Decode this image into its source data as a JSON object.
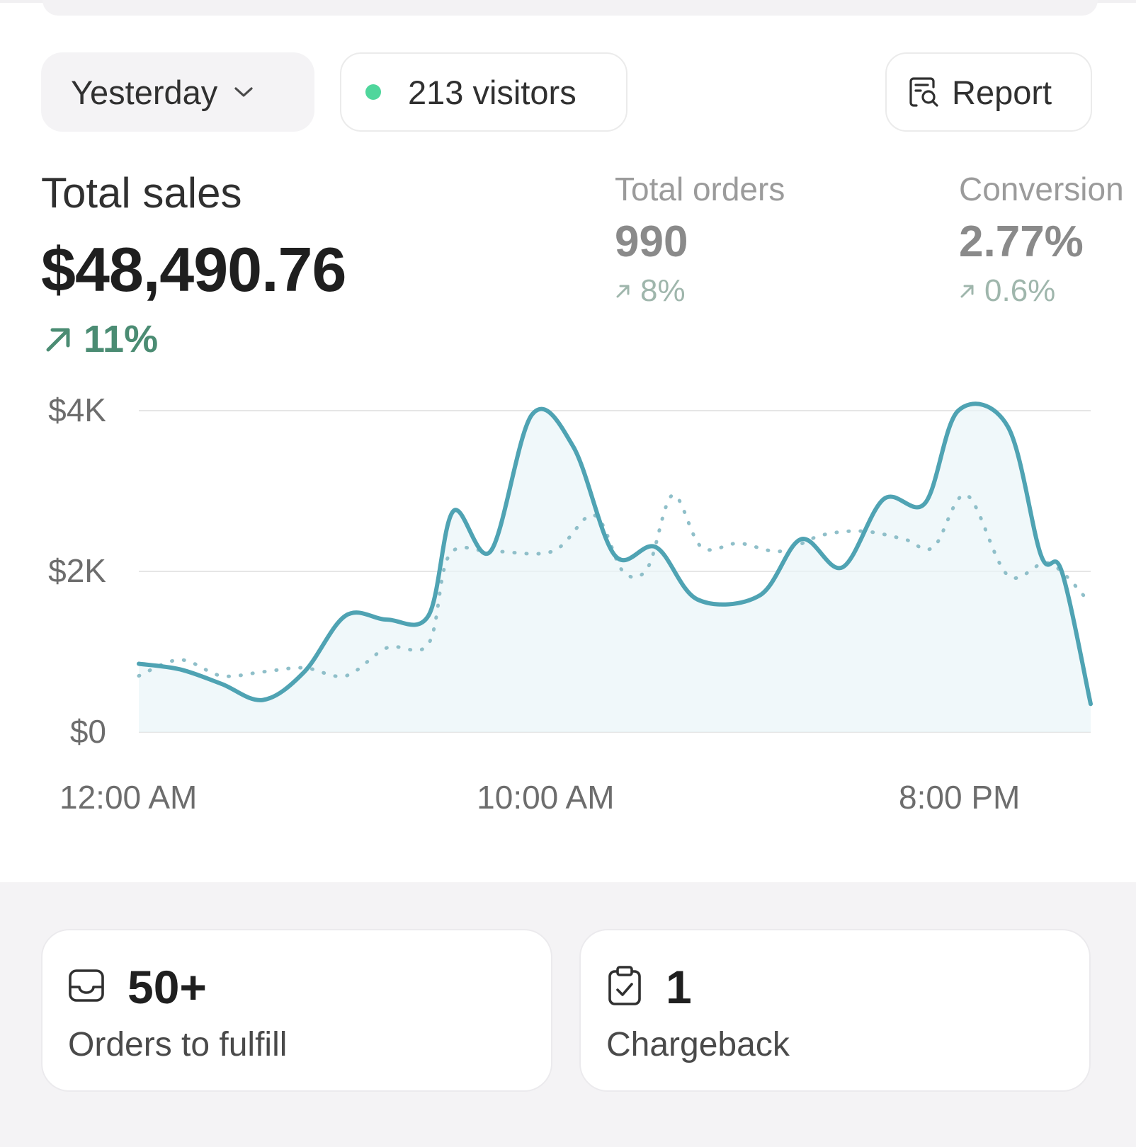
{
  "toolbar": {
    "date_label": "Yesterday",
    "visitors_label": "213 visitors",
    "report_label": "Report"
  },
  "metrics": {
    "total_sales": {
      "label": "Total sales",
      "value": "$48,490.76",
      "change": "11%"
    },
    "total_orders": {
      "label": "Total orders",
      "value": "990",
      "change": "8%"
    },
    "conversion": {
      "label": "Conversion",
      "value": "2.77%",
      "change": "0.6%"
    }
  },
  "chart_data": {
    "type": "line",
    "x_range_hours": [
      0,
      23
    ],
    "ylim": [
      0,
      4000
    ],
    "ytick_labels": [
      "$4K",
      "$2K",
      "$0"
    ],
    "xtick_labels": [
      "12:00 AM",
      "10:00 AM",
      "8:00 PM"
    ],
    "xtick_hours": [
      0,
      10,
      20
    ],
    "grid": true,
    "series": [
      {
        "style": "solid",
        "color": "#4fa3b3",
        "points": [
          [
            0,
            850
          ],
          [
            1,
            780
          ],
          [
            2,
            600
          ],
          [
            3,
            400
          ],
          [
            4,
            750
          ],
          [
            5,
            1450
          ],
          [
            6,
            1400
          ],
          [
            7,
            1450
          ],
          [
            7.6,
            2750
          ],
          [
            8.5,
            2250
          ],
          [
            9.5,
            3950
          ],
          [
            10.5,
            3550
          ],
          [
            11.5,
            2200
          ],
          [
            12.5,
            2300
          ],
          [
            13.5,
            1650
          ],
          [
            15,
            1700
          ],
          [
            16,
            2400
          ],
          [
            17,
            2050
          ],
          [
            18,
            2900
          ],
          [
            19,
            2850
          ],
          [
            19.8,
            4000
          ],
          [
            21,
            3800
          ],
          [
            21.8,
            2200
          ],
          [
            22.3,
            2000
          ],
          [
            23,
            350
          ]
        ]
      },
      {
        "style": "dotted",
        "color": "#8fbfc9",
        "points": [
          [
            0,
            700
          ],
          [
            1,
            900
          ],
          [
            2,
            700
          ],
          [
            3,
            750
          ],
          [
            4,
            800
          ],
          [
            5,
            700
          ],
          [
            6,
            1050
          ],
          [
            7,
            1100
          ],
          [
            7.5,
            2200
          ],
          [
            8.5,
            2250
          ],
          [
            10,
            2250
          ],
          [
            11,
            2700
          ],
          [
            11.7,
            2000
          ],
          [
            12.3,
            2050
          ],
          [
            12.9,
            2950
          ],
          [
            13.6,
            2300
          ],
          [
            14.5,
            2350
          ],
          [
            15.5,
            2250
          ],
          [
            16.5,
            2450
          ],
          [
            17.5,
            2500
          ],
          [
            18.5,
            2400
          ],
          [
            19.2,
            2300
          ],
          [
            20,
            2950
          ],
          [
            21,
            1950
          ],
          [
            22,
            2100
          ],
          [
            23,
            1600
          ]
        ]
      }
    ]
  },
  "cards": {
    "orders": {
      "value": "50+",
      "label": "Orders to fulfill"
    },
    "chargeback": {
      "value": "1",
      "label": "Chargeback"
    }
  },
  "icons": {
    "chevron": "chevron-down-icon",
    "report": "report-search-icon",
    "trend": "arrow-up-right-icon",
    "inbox": "inbox-icon",
    "clipboard": "clipboard-check-icon"
  },
  "colors": {
    "live_dot": "#4fd69c",
    "trend_up": "#4b8c73",
    "line_primary": "#4fa3b3",
    "line_secondary": "#8fbfc9"
  }
}
